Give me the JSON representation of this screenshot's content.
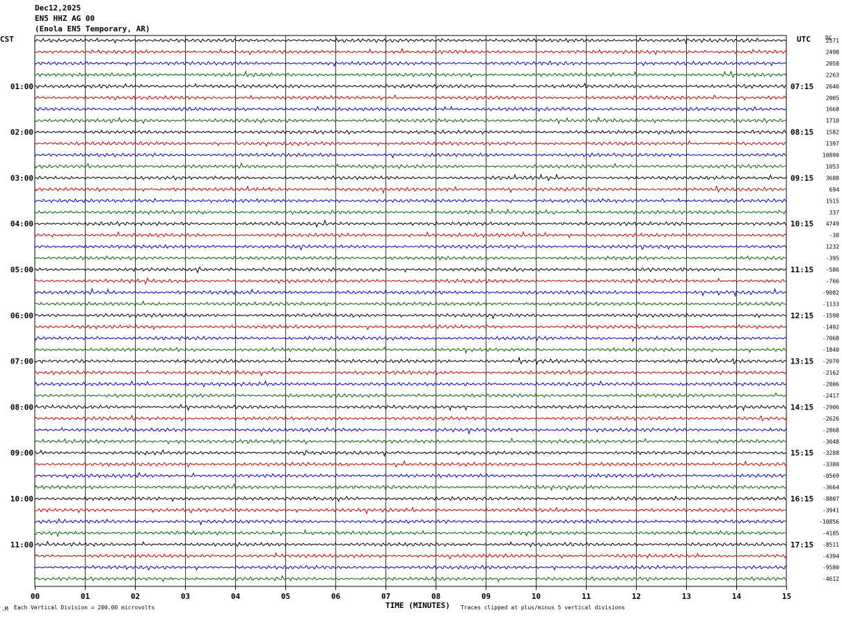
{
  "header": {
    "date": "Dec12,2025",
    "station": "EN5 HHZ AG 00",
    "location": "(Enola EN5 Temporary, AR)"
  },
  "left_axis_label": "CST",
  "right_axis_label": "UTC",
  "dc_label": "DC",
  "footer": {
    "scale_note": "Each Vertical Division =  200.00 microvolts",
    "xlabel": "TIME (MINUTES)",
    "clip_note": "Traces clipped at plus/minus 5 vertical divisions",
    "logo_mark": ".M"
  },
  "colors": {
    "trace_cycle": [
      "#000000",
      "#cc0000",
      "#0000cc",
      "#006600"
    ],
    "grid": "#000000",
    "text": "#000000"
  },
  "chart_data": {
    "type": "line",
    "description_of_axes": "helicorder",
    "xlabel": "TIME (MINUTES)",
    "xlim": [
      0,
      15
    ],
    "x_ticks": [
      "00",
      "01",
      "02",
      "03",
      "04",
      "05",
      "06",
      "07",
      "08",
      "09",
      "10",
      "11",
      "12",
      "13",
      "14",
      "15"
    ],
    "rows_per_hour": 4,
    "row_count": 48,
    "left_hour_labels": [
      "01:00",
      "02:00",
      "03:00",
      "04:00",
      "05:00",
      "06:00",
      "07:00",
      "08:00",
      "09:00",
      "10:00",
      "11:00"
    ],
    "right_hour_labels": [
      "07:15",
      "08:15",
      "09:15",
      "10:15",
      "11:15",
      "12:15",
      "13:15",
      "14:15",
      "15:15",
      "16:15",
      "17:15"
    ],
    "dc_offsets": [
      "2571",
      "2498",
      "2058",
      "2263",
      "2646",
      "2005",
      "1668",
      "1710",
      "1582",
      "1397",
      "10890",
      "1053",
      "3688",
      "694",
      "1515",
      "337",
      "4749",
      "-38",
      "1232",
      "-395",
      "-586",
      "-766",
      "-9082",
      "-1133",
      "-1598",
      "-1492",
      "-7068",
      "-1840",
      "-2070",
      "-2162",
      "-2806",
      "-2417",
      "-2906",
      "-2626",
      "-2868",
      "-3048",
      "-3288",
      "-3380",
      "-0569",
      "-3664",
      "-8807",
      "-3941",
      "-10856",
      "-4185",
      "-8511",
      "-4394",
      "-9580",
      "-4612"
    ],
    "grid": true,
    "scale_microvolts_per_division": 200.0,
    "clip_divisions": 5
  }
}
